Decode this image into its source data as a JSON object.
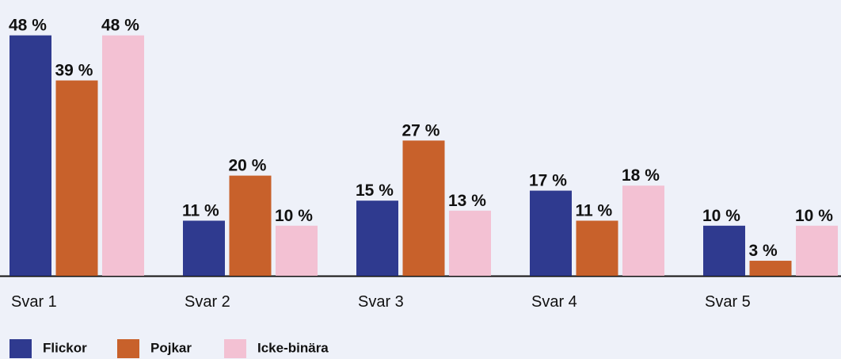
{
  "chart_data": {
    "type": "bar",
    "categories": [
      "Svar 1",
      "Svar 2",
      "Svar 3",
      "Svar 4",
      "Svar 5"
    ],
    "series": [
      {
        "name": "Flickor",
        "color": "#2f3a8f",
        "values": [
          48,
          11,
          15,
          17,
          10
        ],
        "value_labels": [
          "48 %",
          "11 %",
          "15 %",
          "17 %",
          "10 %"
        ]
      },
      {
        "name": "Pojkar",
        "color": "#c8612b",
        "values": [
          39,
          20,
          27,
          11,
          3
        ],
        "value_labels": [
          "39 %",
          "20 %",
          "27 %",
          "11 %",
          "3 %"
        ]
      },
      {
        "name": "Icke-binära",
        "color": "#f3c1d3",
        "values": [
          48,
          10,
          13,
          18,
          10
        ],
        "value_labels": [
          "48 %",
          "10 %",
          "13 %",
          "18 %",
          "10 %"
        ]
      }
    ]
  }
}
